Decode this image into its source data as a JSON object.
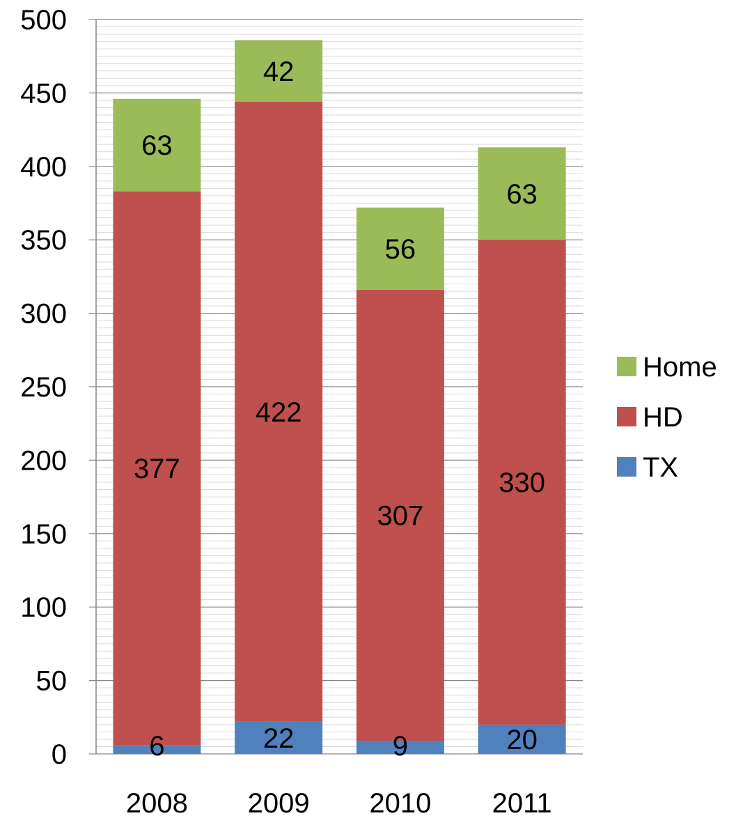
{
  "chart_data": {
    "type": "bar",
    "stacked": true,
    "categories": [
      "2008",
      "2009",
      "2010",
      "2011"
    ],
    "series": [
      {
        "name": "TX",
        "color": "#4f81bd",
        "values": [
          6,
          22,
          9,
          20
        ]
      },
      {
        "name": "HD",
        "color": "#c0504d",
        "values": [
          377,
          422,
          307,
          330
        ]
      },
      {
        "name": "Home",
        "color": "#9bbb59",
        "values": [
          63,
          42,
          56,
          63
        ]
      }
    ],
    "yticks": [
      "0",
      "50",
      "100",
      "150",
      "200",
      "250",
      "300",
      "350",
      "400",
      "450",
      "500"
    ],
    "ylim": [
      0,
      500
    ],
    "minor_gridline_step": 5,
    "grid": true,
    "legend_position": "right",
    "legend_order": [
      "Home",
      "HD",
      "TX"
    ]
  }
}
